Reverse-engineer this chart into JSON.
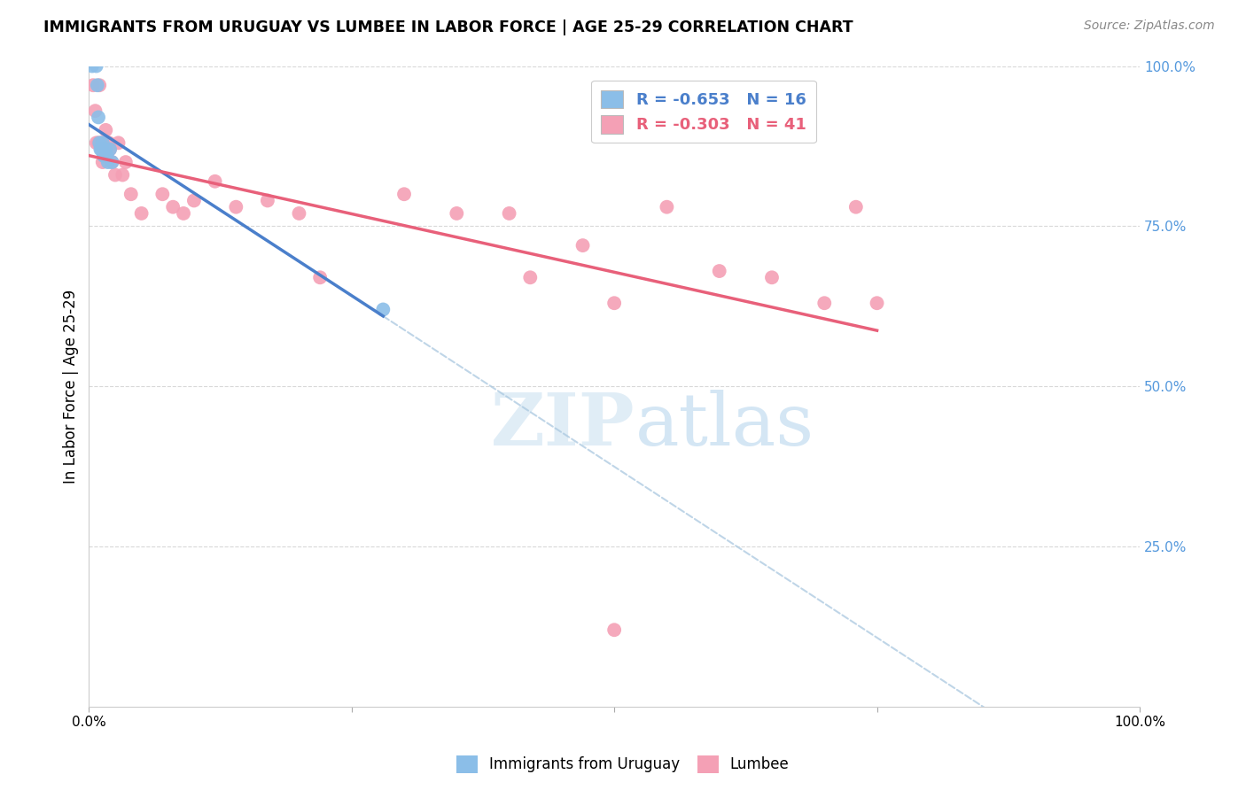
{
  "title": "IMMIGRANTS FROM URUGUAY VS LUMBEE IN LABOR FORCE | AGE 25-29 CORRELATION CHART",
  "source": "Source: ZipAtlas.com",
  "ylabel": "In Labor Force | Age 25-29",
  "ylabel_right_ticks": [
    "100.0%",
    "75.0%",
    "50.0%",
    "25.0%"
  ],
  "ylabel_right_vals": [
    1.0,
    0.75,
    0.5,
    0.25
  ],
  "xlim": [
    0.0,
    1.0
  ],
  "ylim": [
    0.0,
    1.0
  ],
  "blue_R": -0.653,
  "blue_N": 16,
  "pink_R": -0.303,
  "pink_N": 41,
  "blue_color": "#8bbee8",
  "pink_color": "#f4a0b5",
  "blue_line_color": "#4a7fcb",
  "pink_line_color": "#e8607a",
  "dashed_line_color": "#aac8e0",
  "blue_points_x": [
    0.003,
    0.007,
    0.008,
    0.009,
    0.01,
    0.011,
    0.012,
    0.013,
    0.014,
    0.015,
    0.016,
    0.017,
    0.018,
    0.02,
    0.022,
    0.28
  ],
  "blue_points_y": [
    1.0,
    1.0,
    0.97,
    0.92,
    0.88,
    0.87,
    0.87,
    0.88,
    0.86,
    0.86,
    0.87,
    0.86,
    0.85,
    0.87,
    0.85,
    0.62
  ],
  "pink_points_x": [
    0.004,
    0.006,
    0.007,
    0.009,
    0.01,
    0.012,
    0.013,
    0.015,
    0.016,
    0.017,
    0.019,
    0.02,
    0.022,
    0.025,
    0.028,
    0.032,
    0.035,
    0.04,
    0.05,
    0.07,
    0.08,
    0.09,
    0.1,
    0.12,
    0.14,
    0.17,
    0.2,
    0.22,
    0.3,
    0.35,
    0.4,
    0.42,
    0.47,
    0.5,
    0.55,
    0.6,
    0.65,
    0.7,
    0.73,
    0.75,
    0.5
  ],
  "pink_points_y": [
    0.97,
    0.93,
    0.88,
    0.88,
    0.97,
    0.88,
    0.85,
    0.87,
    0.9,
    0.87,
    0.88,
    0.87,
    0.85,
    0.83,
    0.88,
    0.83,
    0.85,
    0.8,
    0.77,
    0.8,
    0.78,
    0.77,
    0.79,
    0.82,
    0.78,
    0.79,
    0.77,
    0.67,
    0.8,
    0.77,
    0.77,
    0.67,
    0.72,
    0.63,
    0.78,
    0.68,
    0.67,
    0.63,
    0.78,
    0.63,
    0.12
  ],
  "watermark_zip": "ZIP",
  "watermark_atlas": "atlas",
  "background_color": "#ffffff",
  "grid_color": "#d8d8d8"
}
